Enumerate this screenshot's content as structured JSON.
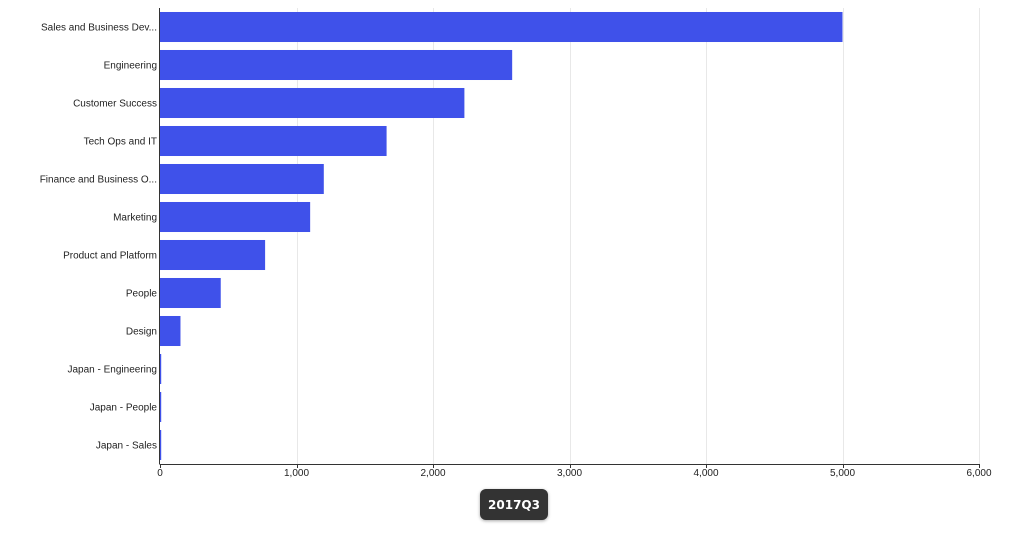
{
  "chart_data": {
    "type": "bar",
    "orientation": "horizontal",
    "categories": [
      "Sales and Business Dev...",
      "Engineering",
      "Customer Success",
      "Tech Ops and IT",
      "Finance and Business O...",
      "Marketing",
      "Product and Platform",
      "People",
      "Design",
      "Japan - Engineering",
      "Japan - People",
      "Japan - Sales"
    ],
    "values": [
      5000,
      2580,
      2230,
      1660,
      1200,
      1100,
      770,
      445,
      150,
      8,
      6,
      5
    ],
    "xlim": [
      0,
      6000
    ],
    "x_ticks": [
      0,
      1000,
      2000,
      3000,
      4000,
      5000,
      6000
    ],
    "x_tick_labels": [
      "0",
      "1,000",
      "2,000",
      "3,000",
      "4,000",
      "5,000",
      "6,000"
    ],
    "grid": true,
    "bar_color": "#3f51ea",
    "title": "",
    "xlabel": "",
    "ylabel": ""
  },
  "period_label": "2017Q3"
}
